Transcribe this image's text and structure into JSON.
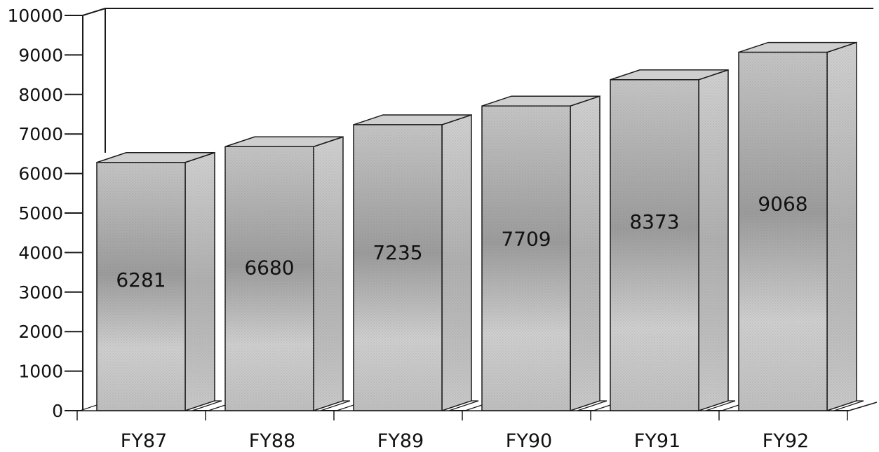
{
  "chart_data": {
    "type": "bar",
    "title": "",
    "xlabel": "",
    "ylabel": "",
    "categories": [
      "FY87",
      "FY88",
      "FY89",
      "FY90",
      "FY91",
      "FY92"
    ],
    "values": [
      6281,
      6680,
      7235,
      7709,
      8373,
      9068
    ],
    "data_labels": [
      "6281",
      "6680",
      "7235",
      "7709",
      "8373",
      "9068"
    ],
    "ylim": [
      0,
      10000
    ],
    "y_ticks": [
      "0",
      "1000",
      "2000",
      "3000",
      "4000",
      "5000",
      "6000",
      "7000",
      "8000",
      "9000",
      "10000"
    ],
    "grid": false,
    "legend": "none",
    "style": "3d",
    "colors": {
      "bar_front": "#b4b4b4",
      "bar_side": "#c4c4c4",
      "bar_top": "#cfcfcf",
      "outline": "#1a1a1a",
      "axis": "#1a1a1a"
    }
  }
}
